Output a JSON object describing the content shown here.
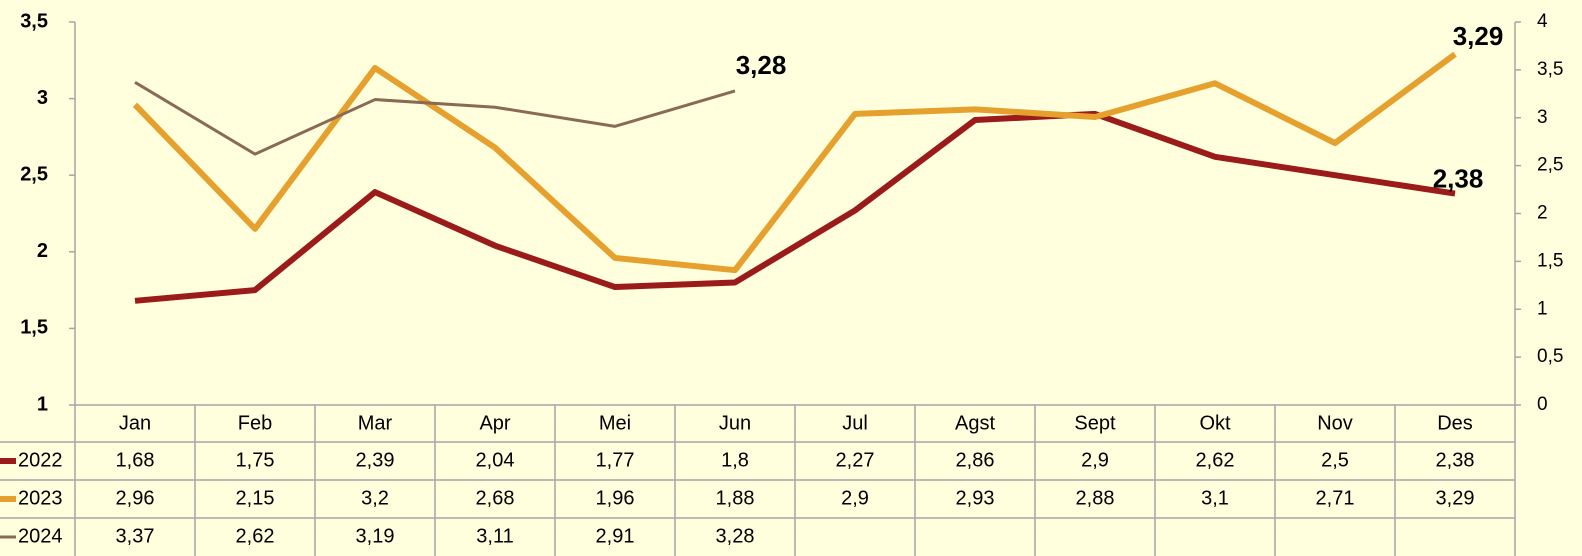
{
  "chart_data": {
    "type": "line",
    "categories": [
      "Jan",
      "Feb",
      "Mar",
      "Apr",
      "Mei",
      "Jun",
      "Jul",
      "Agst",
      "Sept",
      "Okt",
      "Nov",
      "Des"
    ],
    "series": [
      {
        "name": "2022",
        "color": "#9b1a1a",
        "axis": "y",
        "values": [
          1.68,
          1.75,
          2.39,
          2.04,
          1.77,
          1.8,
          2.27,
          2.86,
          2.9,
          2.62,
          2.5,
          2.38
        ],
        "value_labels": [
          "1,68",
          "1,75",
          "2,39",
          "2,04",
          "1,77",
          "1,8",
          "2,27",
          "2,86",
          "2,9",
          "2,62",
          "2,5",
          "2,38"
        ]
      },
      {
        "name": "2023",
        "color": "#e6a02e",
        "axis": "y",
        "values": [
          2.96,
          2.15,
          3.2,
          2.68,
          1.96,
          1.88,
          2.9,
          2.93,
          2.88,
          3.1,
          2.71,
          3.29
        ],
        "value_labels": [
          "2,96",
          "2,15",
          "3,2",
          "2,68",
          "1,96",
          "1,88",
          "2,9",
          "2,93",
          "2,88",
          "3,1",
          "2,71",
          "3,29"
        ]
      },
      {
        "name": "2024",
        "color": "#8a6a52",
        "axis": "y2",
        "values": [
          3.37,
          2.62,
          3.19,
          3.11,
          2.91,
          3.28,
          null,
          null,
          null,
          null,
          null,
          null
        ],
        "value_labels": [
          "3,37",
          "2,62",
          "3,19",
          "3,11",
          "2,91",
          "3,28",
          null,
          null,
          null,
          null,
          null,
          null
        ]
      }
    ],
    "ylim": [
      1,
      3.5
    ],
    "yticks": [
      1,
      {
        "value": 1.5,
        "label": "1,5"
      },
      2,
      {
        "value": 2.5,
        "label": "2,5"
      },
      3,
      {
        "value": 3.5,
        "label": "3,5"
      }
    ],
    "y2lim": [
      0,
      4
    ],
    "y2ticks": [
      0,
      {
        "value": 0.5,
        "label": "0,5"
      },
      1,
      {
        "value": 1.5,
        "label": "1,5"
      },
      2,
      {
        "value": 2.5,
        "label": "2,5"
      },
      3,
      {
        "value": 3.5,
        "label": "3,5"
      },
      4
    ],
    "data_table": true
  }
}
